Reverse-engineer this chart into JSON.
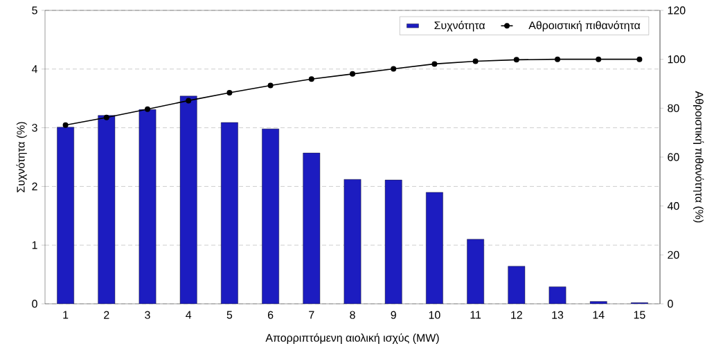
{
  "chart_data": {
    "type": "bar",
    "categories": [
      "1",
      "2",
      "3",
      "4",
      "5",
      "6",
      "7",
      "8",
      "9",
      "10",
      "11",
      "12",
      "13",
      "14",
      "15"
    ],
    "xlabel": "Απορριπτόμενη αιολική ισχύς (MW)",
    "ylabel": "Συχνότητα (%)",
    "y2label": "Αθροιστική πιθανότητα (%)",
    "series": [
      {
        "name": "Συχνότητα",
        "color": "#1c1cc0",
        "values": [
          3.01,
          3.21,
          3.31,
          3.54,
          3.09,
          2.98,
          2.57,
          2.12,
          2.11,
          1.9,
          1.1,
          0.64,
          0.29,
          0.04,
          0.02
        ]
      },
      {
        "name": "Αθροιστική πιθανότητα",
        "type": "line",
        "axis": "y2",
        "color": "#000000",
        "values": [
          73.1,
          76.2,
          79.6,
          83.1,
          86.3,
          89.3,
          91.9,
          94.0,
          96.1,
          98.1,
          99.2,
          99.8,
          100,
          100,
          100
        ]
      }
    ],
    "ylim": [
      0,
      5
    ],
    "yticks": [
      0,
      1,
      2,
      3,
      4,
      5
    ],
    "y2lim": [
      0,
      120
    ],
    "y2ticks": [
      0,
      20,
      40,
      60,
      80,
      100,
      120
    ],
    "grid": "y",
    "legend": "top right",
    "marker": "circle",
    "line_style": "solid"
  }
}
